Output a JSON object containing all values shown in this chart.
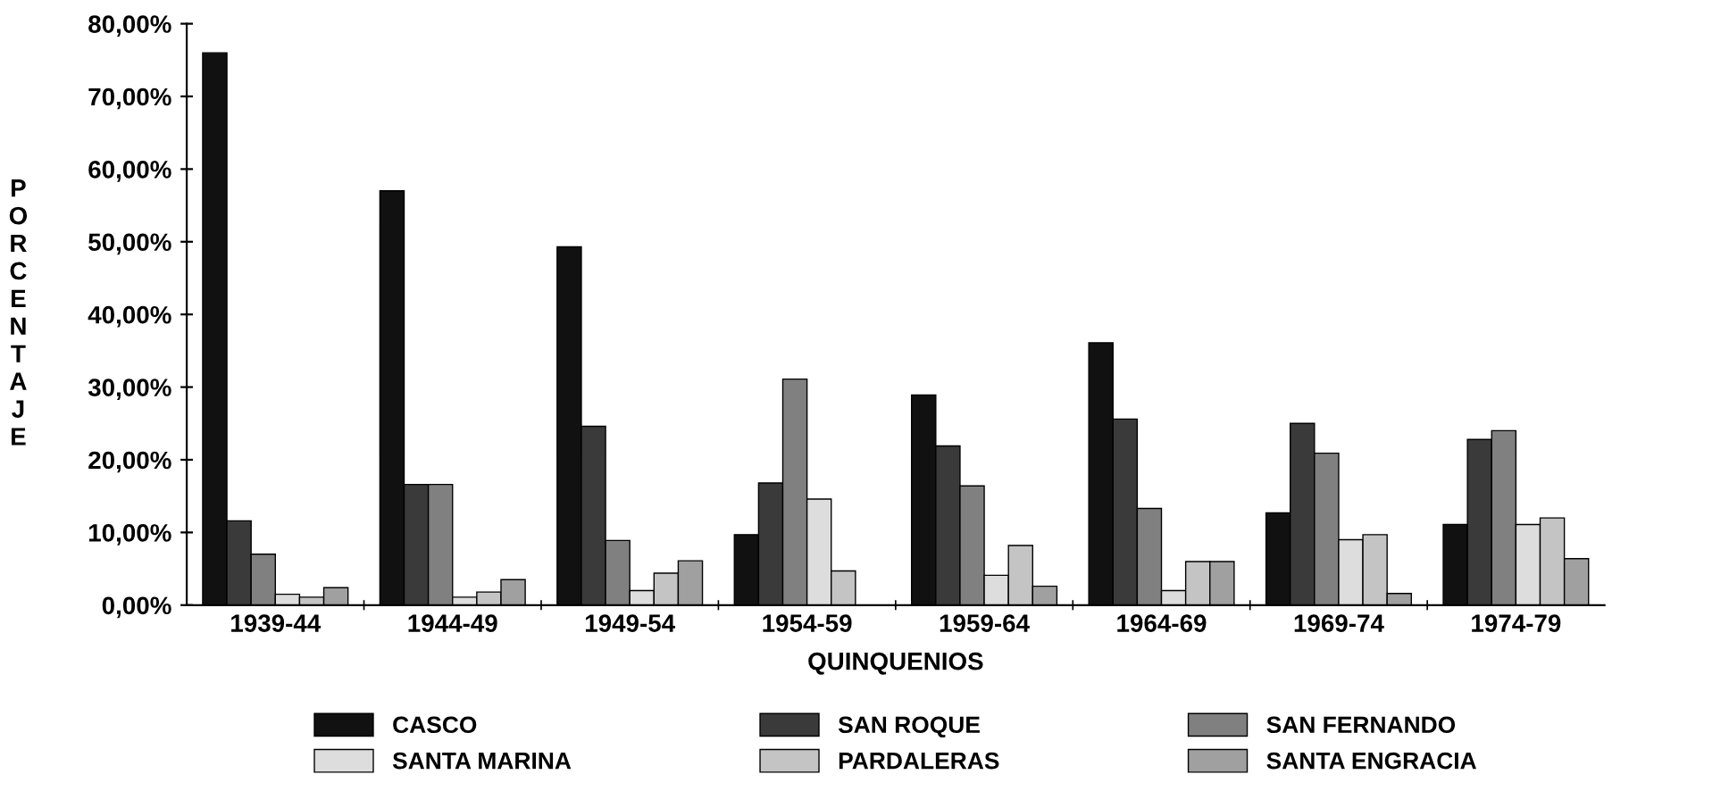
{
  "chart_data": {
    "type": "bar",
    "xlabel": "QUINQUENIOS",
    "ylabel": "PORCENTAJE",
    "categories": [
      "1939-44",
      "1944-49",
      "1949-54",
      "1954-59",
      "1959-64",
      "1964-69",
      "1969-74",
      "1974-79"
    ],
    "series": [
      {
        "name": "CASCO",
        "color": "#111111",
        "values": [
          76.0,
          57.0,
          49.3,
          9.7,
          28.9,
          36.1,
          12.7,
          11.1
        ]
      },
      {
        "name": "SAN ROQUE",
        "color": "#3a3a3a",
        "values": [
          11.6,
          16.6,
          24.6,
          16.8,
          21.9,
          25.6,
          25.0,
          22.8
        ]
      },
      {
        "name": "SAN FERNANDO",
        "color": "#808080",
        "values": [
          7.0,
          16.6,
          8.9,
          31.1,
          16.4,
          13.3,
          20.9,
          24.0
        ]
      },
      {
        "name": "SANTA MARINA",
        "color": "#dddddd",
        "values": [
          1.5,
          1.1,
          2.0,
          14.6,
          4.1,
          2.0,
          9.0,
          11.1
        ]
      },
      {
        "name": "PARDALERAS",
        "color": "#c4c4c4",
        "values": [
          1.1,
          1.8,
          4.4,
          4.7,
          8.2,
          6.0,
          9.7,
          12.0
        ]
      },
      {
        "name": "SANTA ENGRACIA",
        "color": "#a0a0a0",
        "values": [
          2.4,
          3.5,
          6.1,
          null,
          2.6,
          6.0,
          1.6,
          6.4
        ]
      }
    ],
    "ylim": [
      0,
      80
    ],
    "yticks": [
      {
        "value": 0,
        "label": "0,00%"
      },
      {
        "value": 10,
        "label": "10,00%"
      },
      {
        "value": 20,
        "label": "20,00%"
      },
      {
        "value": 30,
        "label": "30,00%"
      },
      {
        "value": 40,
        "label": "40,00%"
      },
      {
        "value": 50,
        "label": "50,00%"
      },
      {
        "value": 60,
        "label": "60,00%"
      },
      {
        "value": 70,
        "label": "70,00%"
      },
      {
        "value": 80,
        "label": "80,00%"
      }
    ],
    "grid": false,
    "legend": "bottom"
  }
}
